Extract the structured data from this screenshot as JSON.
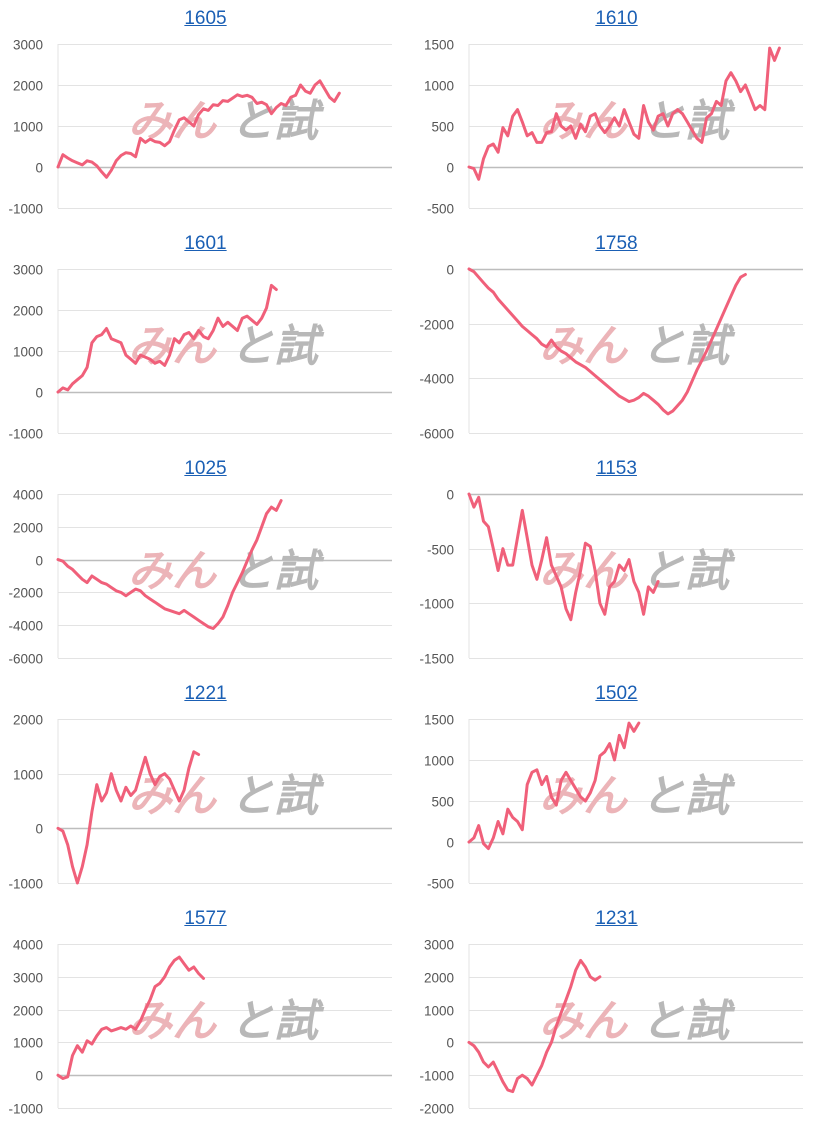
{
  "colors": {
    "line": "#f0607a",
    "grid": "#e3e3e3",
    "zero": "#bdbdbd",
    "title": "#1a5fb4"
  },
  "watermark": {
    "kana": "みん",
    "kanji": "と試",
    "kana_color": "#ecb4b8",
    "kanji_color": "#b8b8b8"
  },
  "chart_data": [
    {
      "type": "line",
      "title": "1605",
      "ylim": [
        -1000,
        3000
      ],
      "yticks": [
        "3000",
        "2000",
        "1000",
        "0",
        "-1000"
      ],
      "tick_values": [
        3000,
        2000,
        1000,
        0,
        -1000
      ],
      "values": [
        0,
        300,
        220,
        150,
        100,
        50,
        150,
        120,
        30,
        -120,
        -250,
        -80,
        150,
        280,
        350,
        330,
        250,
        700,
        600,
        680,
        620,
        600,
        520,
        620,
        900,
        1150,
        1200,
        1100,
        1000,
        1280,
        1420,
        1380,
        1520,
        1500,
        1620,
        1600,
        1680,
        1760,
        1720,
        1750,
        1700,
        1550,
        1580,
        1520,
        1300,
        1450,
        1550,
        1500,
        1700,
        1750,
        2000,
        1850,
        1800,
        2000,
        2100,
        1900,
        1700,
        1600,
        1800
      ]
    },
    {
      "type": "line",
      "title": "1610",
      "ylim": [
        -500,
        1500
      ],
      "yticks": [
        "1500",
        "1000",
        "500",
        "0",
        "-500"
      ],
      "tick_values": [
        1500,
        1000,
        500,
        0,
        -500
      ],
      "values": [
        0,
        -20,
        -150,
        100,
        250,
        280,
        180,
        480,
        380,
        620,
        700,
        550,
        380,
        420,
        300,
        300,
        420,
        430,
        650,
        500,
        450,
        500,
        350,
        520,
        430,
        620,
        650,
        500,
        420,
        500,
        600,
        500,
        700,
        550,
        400,
        350,
        750,
        550,
        450,
        620,
        650,
        500,
        650,
        700,
        650,
        550,
        450,
        350,
        300,
        600,
        650,
        800,
        750,
        1050,
        1150,
        1050,
        920,
        1000,
        850,
        700,
        750,
        700,
        1450,
        1300,
        1450
      ]
    },
    {
      "type": "line",
      "title": "1601",
      "ylim": [
        -1000,
        3000
      ],
      "yticks": [
        "3000",
        "2000",
        "1000",
        "0",
        "-1000"
      ],
      "tick_values": [
        3000,
        2000,
        1000,
        0,
        -1000
      ],
      "values": [
        0,
        100,
        50,
        200,
        300,
        400,
        600,
        1200,
        1350,
        1400,
        1550,
        1300,
        1250,
        1200,
        900,
        800,
        700,
        900,
        850,
        800,
        700,
        750,
        650,
        900,
        1300,
        1200,
        1400,
        1450,
        1300,
        1500,
        1350,
        1300,
        1500,
        1800,
        1600,
        1700,
        1600,
        1500,
        1800,
        1850,
        1750,
        1650,
        1800,
        2050,
        2600,
        2500
      ]
    },
    {
      "type": "line",
      "title": "1758",
      "ylim": [
        -6000,
        0
      ],
      "yticks": [
        "0",
        "-2000",
        "-4000",
        "-6000"
      ],
      "tick_values": [
        0,
        -2000,
        -4000,
        -6000
      ],
      "values": [
        0,
        -100,
        -300,
        -500,
        -700,
        -850,
        -1100,
        -1300,
        -1500,
        -1700,
        -1900,
        -2100,
        -2250,
        -2400,
        -2550,
        -2750,
        -2850,
        -2600,
        -2850,
        -3000,
        -3100,
        -3250,
        -3400,
        -3500,
        -3600,
        -3750,
        -3900,
        -4050,
        -4200,
        -4350,
        -4500,
        -4650,
        -4750,
        -4850,
        -4800,
        -4700,
        -4550,
        -4650,
        -4800,
        -4950,
        -5150,
        -5300,
        -5200,
        -5000,
        -4800,
        -4500,
        -4100,
        -3700,
        -3350,
        -3000,
        -2600,
        -2200,
        -1800,
        -1400,
        -1000,
        -600,
        -300,
        -200
      ]
    },
    {
      "type": "line",
      "title": "1025",
      "ylim": [
        -6000,
        4000
      ],
      "yticks": [
        "4000",
        "2000",
        "0",
        "-2000",
        "-4000",
        "-6000"
      ],
      "tick_values": [
        4000,
        2000,
        0,
        -2000,
        -4000,
        -6000
      ],
      "values": [
        0,
        -100,
        -400,
        -600,
        -900,
        -1200,
        -1400,
        -1000,
        -1200,
        -1400,
        -1500,
        -1700,
        -1900,
        -2000,
        -2200,
        -2000,
        -1800,
        -1900,
        -2200,
        -2400,
        -2600,
        -2800,
        -3000,
        -3100,
        -3200,
        -3300,
        -3100,
        -3300,
        -3500,
        -3700,
        -3900,
        -4100,
        -4200,
        -3900,
        -3500,
        -2800,
        -2000,
        -1400,
        -800,
        -100,
        600,
        1200,
        2000,
        2800,
        3200,
        3000,
        3600
      ]
    },
    {
      "type": "line",
      "title": "1153",
      "ylim": [
        -1500,
        0
      ],
      "yticks": [
        "0",
        "-500",
        "-1000",
        "-1500"
      ],
      "tick_values": [
        0,
        -500,
        -1000,
        -1500
      ],
      "values": [
        0,
        -120,
        -30,
        -250,
        -300,
        -500,
        -700,
        -500,
        -650,
        -650,
        -400,
        -150,
        -400,
        -650,
        -780,
        -600,
        -400,
        -650,
        -750,
        -850,
        -1050,
        -1150,
        -900,
        -700,
        -450,
        -480,
        -700,
        -1000,
        -1100,
        -850,
        -800,
        -650,
        -700,
        -600,
        -800,
        -900,
        -1100,
        -850,
        -900,
        -800
      ]
    },
    {
      "type": "line",
      "title": "1221",
      "ylim": [
        -1000,
        2000
      ],
      "yticks": [
        "2000",
        "1000",
        "0",
        "-1000"
      ],
      "tick_values": [
        2000,
        1000,
        0,
        -1000
      ],
      "values": [
        0,
        -50,
        -300,
        -700,
        -1000,
        -700,
        -300,
        300,
        800,
        500,
        650,
        1000,
        700,
        500,
        750,
        600,
        700,
        1000,
        1300,
        1000,
        800,
        950,
        1000,
        900,
        700,
        500,
        700,
        1100,
        1400,
        1350
      ]
    },
    {
      "type": "line",
      "title": "1502",
      "ylim": [
        -500,
        1500
      ],
      "yticks": [
        "1500",
        "1000",
        "500",
        "0",
        "-500"
      ],
      "tick_values": [
        1500,
        1000,
        500,
        0,
        -500
      ],
      "values": [
        0,
        50,
        200,
        -20,
        -80,
        50,
        250,
        100,
        400,
        300,
        250,
        150,
        700,
        850,
        880,
        700,
        800,
        550,
        450,
        750,
        850,
        750,
        650,
        550,
        500,
        600,
        750,
        1050,
        1100,
        1200,
        1000,
        1300,
        1150,
        1450,
        1350,
        1450
      ]
    },
    {
      "type": "line",
      "title": "1577",
      "ylim": [
        -1000,
        4000
      ],
      "yticks": [
        "4000",
        "3000",
        "2000",
        "1000",
        "0",
        "-1000"
      ],
      "tick_values": [
        4000,
        3000,
        2000,
        1000,
        0,
        -1000
      ],
      "values": [
        0,
        -100,
        -50,
        600,
        900,
        700,
        1050,
        950,
        1200,
        1400,
        1450,
        1350,
        1400,
        1450,
        1400,
        1500,
        1400,
        1650,
        2000,
        2300,
        2700,
        2800,
        3000,
        3300,
        3500,
        3600,
        3400,
        3200,
        3300,
        3100,
        2950
      ]
    },
    {
      "type": "line",
      "title": "1231",
      "ylim": [
        -2000,
        3000
      ],
      "yticks": [
        "3000",
        "2000",
        "1000",
        "0",
        "-1000",
        "-2000"
      ],
      "tick_values": [
        3000,
        2000,
        1000,
        0,
        -1000,
        -2000
      ],
      "values": [
        0,
        -100,
        -300,
        -600,
        -750,
        -600,
        -900,
        -1200,
        -1450,
        -1500,
        -1100,
        -1000,
        -1100,
        -1300,
        -1000,
        -700,
        -300,
        0,
        500,
        900,
        1300,
        1700,
        2200,
        2500,
        2300,
        2000,
        1900,
        2000
      ]
    }
  ]
}
